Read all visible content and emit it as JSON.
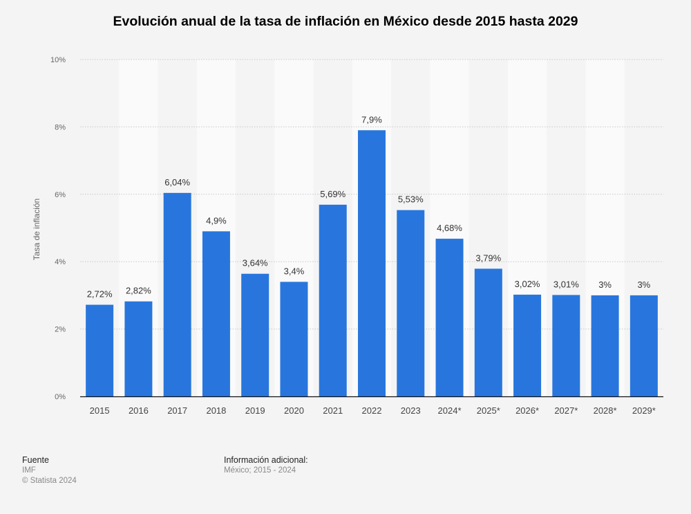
{
  "chart_data": {
    "type": "bar",
    "title": "Evolución anual de la tasa de inflación en México desde 2015 hasta 2029",
    "ylabel": "Tasa de inflación",
    "xlabel": "",
    "categories": [
      "2015",
      "2016",
      "2017",
      "2018",
      "2019",
      "2020",
      "2021",
      "2022",
      "2023",
      "2024*",
      "2025*",
      "2026*",
      "2027*",
      "2028*",
      "2029*"
    ],
    "values": [
      2.72,
      2.82,
      6.04,
      4.9,
      3.64,
      3.4,
      5.69,
      7.9,
      5.53,
      4.68,
      3.79,
      3.02,
      3.01,
      3,
      3
    ],
    "value_labels": [
      "2,72%",
      "2,82%",
      "6,04%",
      "4,9%",
      "3,64%",
      "3,4%",
      "5,69%",
      "7,9%",
      "5,53%",
      "4,68%",
      "3,79%",
      "3,02%",
      "3,01%",
      "3%",
      "3%"
    ],
    "ylim": [
      0,
      10
    ],
    "yticks": [
      0,
      2,
      4,
      6,
      8,
      10
    ],
    "ytick_labels": [
      "0%",
      "2%",
      "4%",
      "6%",
      "8%",
      "10%"
    ],
    "grid": true,
    "bar_color": "#2876dd"
  },
  "footer": {
    "source_heading": "Fuente",
    "source": "IMF",
    "copyright": "© Statista 2024",
    "info_heading": "Información adicional:",
    "info": "México; 2015 - 2024"
  }
}
